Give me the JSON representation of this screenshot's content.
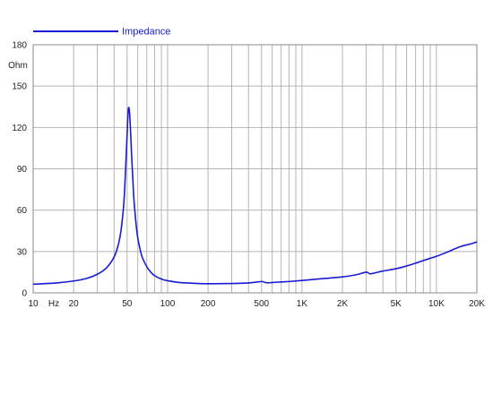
{
  "chart_data": {
    "type": "line",
    "title": "",
    "xlabel": "",
    "ylabel": "",
    "x_scale": "log",
    "xlim": [
      10,
      20000
    ],
    "ylim": [
      0,
      180
    ],
    "grid": true,
    "legend_position": "top-left",
    "y_unit_label": "Ohm",
    "x_unit_label": "Hz",
    "y_ticks": [
      0,
      30,
      60,
      90,
      120,
      150,
      180
    ],
    "y_tick_labels": [
      "0",
      "30",
      "60",
      "90",
      "120",
      "150",
      "180"
    ],
    "x_labeled_ticks": [
      {
        "value": 10,
        "label": "10"
      },
      {
        "value": 20,
        "label": "20"
      },
      {
        "value": 50,
        "label": "50"
      },
      {
        "value": 100,
        "label": "100"
      },
      {
        "value": 200,
        "label": "200"
      },
      {
        "value": 500,
        "label": "500"
      },
      {
        "value": 1000,
        "label": "1K"
      },
      {
        "value": 2000,
        "label": "2K"
      },
      {
        "value": 5000,
        "label": "5K"
      },
      {
        "value": 10000,
        "label": "10K"
      },
      {
        "value": 20000,
        "label": "20K"
      }
    ],
    "series": [
      {
        "name": "Impedance",
        "color": "#1a1ad6",
        "x": [
          10,
          15,
          20,
          25,
          30,
          35,
          40,
          43,
          45,
          47,
          48,
          49,
          50,
          51,
          52,
          53,
          54,
          55,
          56,
          58,
          60,
          63,
          65,
          70,
          75,
          80,
          90,
          100,
          120,
          150,
          200,
          300,
          400,
          500,
          520,
          550,
          600,
          700,
          800,
          1000,
          1500,
          2000,
          2500,
          3000,
          3200,
          3500,
          4000,
          5000,
          6000,
          7000,
          8000,
          10000,
          12000,
          15000,
          18000,
          20000
        ],
        "y": [
          6.3,
          7.2,
          8.6,
          10.5,
          13.5,
          18,
          26,
          35,
          45,
          62,
          76,
          95,
          115,
          133,
          132,
          118,
          100,
          85,
          70,
          52,
          40,
          30,
          25.5,
          19,
          15,
          12.5,
          10,
          8.8,
          7.6,
          7,
          6.6,
          6.8,
          7.2,
          8.2,
          7.8,
          7.3,
          7.5,
          7.9,
          8.2,
          9,
          10.5,
          11.6,
          13,
          15,
          13.8,
          14.5,
          15.8,
          17.5,
          19.5,
          21.5,
          23.5,
          26.5,
          29.5,
          33.5,
          35.5,
          37
        ]
      }
    ]
  }
}
